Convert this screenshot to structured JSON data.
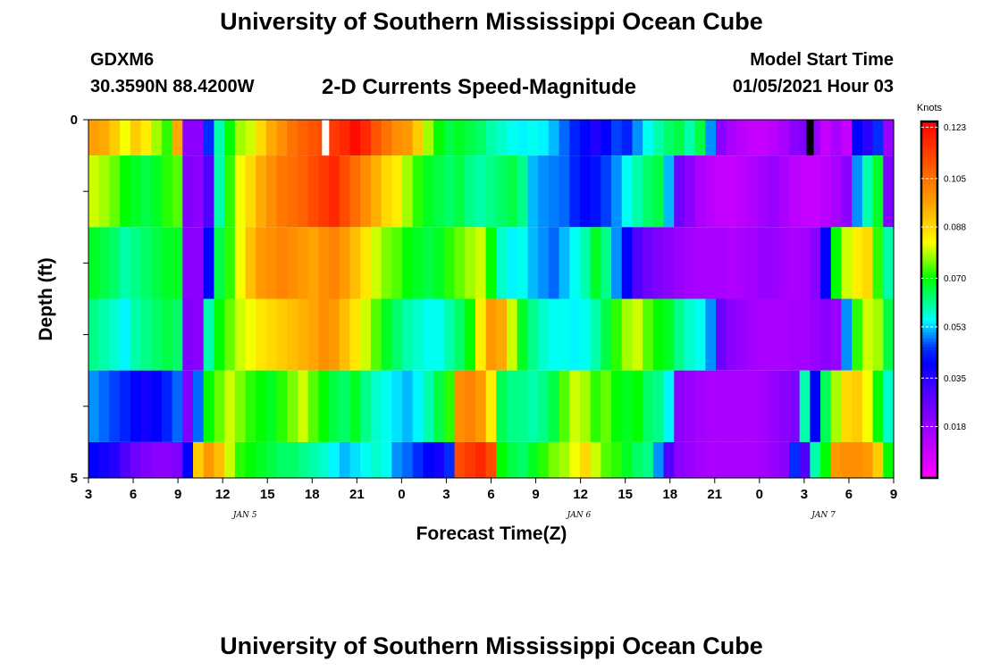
{
  "header": {
    "title": "University of Southern Mississippi Ocean Cube",
    "station": "GDXM6",
    "coordinates": "30.3590N 88.4200W",
    "subtitle": "2-D Currents Speed-Magnitude",
    "model_start_label": "Model Start Time",
    "model_start_value": "01/05/2021 Hour 03"
  },
  "footer": {
    "title": "University of Southern Mississippi Ocean Cube"
  },
  "chart_data": {
    "type": "heatmap",
    "title": "2-D Currents Speed-Magnitude",
    "xlabel": "Forecast Time(Z)",
    "ylabel": "Depth (ft)",
    "x_start_hour": 3,
    "x_end_hour": 57,
    "x_ticks": [
      {
        "hour": 3,
        "label": "3"
      },
      {
        "hour": 6,
        "label": "6"
      },
      {
        "hour": 9,
        "label": "9"
      },
      {
        "hour": 12,
        "label": "12"
      },
      {
        "hour": 15,
        "label": "15"
      },
      {
        "hour": 18,
        "label": "18"
      },
      {
        "hour": 21,
        "label": "21"
      },
      {
        "hour": 24,
        "label": "0"
      },
      {
        "hour": 27,
        "label": "3"
      },
      {
        "hour": 30,
        "label": "6"
      },
      {
        "hour": 33,
        "label": "9"
      },
      {
        "hour": 36,
        "label": "12"
      },
      {
        "hour": 39,
        "label": "15"
      },
      {
        "hour": 42,
        "label": "18"
      },
      {
        "hour": 45,
        "label": "21"
      },
      {
        "hour": 48,
        "label": "0"
      },
      {
        "hour": 51,
        "label": "3"
      },
      {
        "hour": 54,
        "label": "6"
      },
      {
        "hour": 57,
        "label": "9"
      }
    ],
    "date_labels": [
      {
        "hour": 13.5,
        "label": "JAN 5"
      },
      {
        "hour": 35.9,
        "label": "JAN 6"
      },
      {
        "hour": 52.3,
        "label": "JAN 7"
      }
    ],
    "ylim": [
      0,
      5
    ],
    "y_ticks": [
      {
        "depth": 0,
        "label": "0"
      },
      {
        "depth": 1,
        "label": ""
      },
      {
        "depth": 2,
        "label": ""
      },
      {
        "depth": 3,
        "label": ""
      },
      {
        "depth": 4,
        "label": ""
      },
      {
        "depth": 5,
        "label": "5"
      }
    ],
    "depth_rows": [
      {
        "top": 0,
        "bottom": 0.5
      },
      {
        "top": 0.5,
        "bottom": 1.5
      },
      {
        "top": 1.5,
        "bottom": 2.5
      },
      {
        "top": 2.5,
        "bottom": 3.5
      },
      {
        "top": 3.5,
        "bottom": 4.5
      },
      {
        "top": 4.5,
        "bottom": 5
      }
    ],
    "speed_knots": [
      [
        0.097,
        0.095,
        0.09,
        0.082,
        0.09,
        0.085,
        0.078,
        0.072,
        0.095,
        0.02,
        0.02,
        0.045,
        0.06,
        0.07,
        0.078,
        0.08,
        0.088,
        0.095,
        0.1,
        0.105,
        0.108,
        0.11,
        0.112,
        0.115,
        0.118,
        0.123,
        0.118,
        0.11,
        0.105,
        0.1,
        0.098,
        0.09,
        0.078,
        0.07,
        0.066,
        0.068,
        0.066,
        0.064,
        0.06,
        0.058,
        0.056,
        0.055,
        0.056,
        0.055,
        0.052,
        0.048,
        0.044,
        0.04,
        0.036,
        0.04,
        0.046,
        0.044,
        0.05,
        0.056,
        0.06,
        0.064,
        0.066,
        0.06,
        0.066,
        0.05,
        0.02,
        0.015,
        0.012,
        0.01,
        0.01,
        0.012,
        0.015,
        0.02,
        0.022,
        0.018,
        0.01,
        0.015,
        0.01,
        0.04,
        0.035,
        0.045,
        0.018
      ],
      [
        0.08,
        0.078,
        0.075,
        0.07,
        0.068,
        0.066,
        0.068,
        0.072,
        0.074,
        0.022,
        0.02,
        0.03,
        0.06,
        0.072,
        0.082,
        0.088,
        0.095,
        0.1,
        0.104,
        0.106,
        0.108,
        0.112,
        0.115,
        0.118,
        0.112,
        0.106,
        0.1,
        0.094,
        0.088,
        0.085,
        0.078,
        0.072,
        0.068,
        0.066,
        0.064,
        0.066,
        0.062,
        0.06,
        0.062,
        0.064,
        0.066,
        0.062,
        0.052,
        0.05,
        0.049,
        0.048,
        0.044,
        0.04,
        0.042,
        0.046,
        0.05,
        0.056,
        0.06,
        0.064,
        0.066,
        0.052,
        0.025,
        0.02,
        0.015,
        0.012,
        0.01,
        0.01,
        0.012,
        0.014,
        0.016,
        0.018,
        0.015,
        0.012,
        0.01,
        0.01,
        0.012,
        0.015,
        0.02,
        0.05,
        0.06,
        0.068,
        0.022
      ],
      [
        0.068,
        0.066,
        0.064,
        0.06,
        0.062,
        0.064,
        0.066,
        0.068,
        0.068,
        0.02,
        0.02,
        0.04,
        0.066,
        0.072,
        0.082,
        0.092,
        0.098,
        0.1,
        0.102,
        0.1,
        0.098,
        0.096,
        0.1,
        0.102,
        0.098,
        0.092,
        0.086,
        0.08,
        0.076,
        0.074,
        0.07,
        0.068,
        0.066,
        0.068,
        0.072,
        0.075,
        0.078,
        0.08,
        0.07,
        0.058,
        0.055,
        0.056,
        0.052,
        0.05,
        0.048,
        0.052,
        0.056,
        0.06,
        0.068,
        0.062,
        0.05,
        0.04,
        0.03,
        0.025,
        0.022,
        0.02,
        0.018,
        0.016,
        0.015,
        0.015,
        0.015,
        0.014,
        0.015,
        0.016,
        0.018,
        0.018,
        0.016,
        0.015,
        0.016,
        0.02,
        0.04,
        0.07,
        0.08,
        0.085,
        0.088,
        0.072,
        0.06
      ],
      [
        0.062,
        0.06,
        0.058,
        0.055,
        0.06,
        0.062,
        0.064,
        0.066,
        0.064,
        0.022,
        0.02,
        0.06,
        0.07,
        0.075,
        0.08,
        0.082,
        0.086,
        0.088,
        0.09,
        0.092,
        0.094,
        0.096,
        0.1,
        0.098,
        0.092,
        0.086,
        0.08,
        0.074,
        0.068,
        0.064,
        0.06,
        0.058,
        0.056,
        0.056,
        0.06,
        0.064,
        0.07,
        0.085,
        0.098,
        0.095,
        0.08,
        0.068,
        0.062,
        0.058,
        0.056,
        0.056,
        0.055,
        0.056,
        0.06,
        0.066,
        0.072,
        0.078,
        0.08,
        0.074,
        0.07,
        0.068,
        0.062,
        0.058,
        0.056,
        0.05,
        0.025,
        0.02,
        0.018,
        0.016,
        0.015,
        0.015,
        0.015,
        0.016,
        0.016,
        0.018,
        0.02,
        0.018,
        0.05,
        0.072,
        0.08,
        0.078,
        0.066
      ],
      [
        0.05,
        0.048,
        0.046,
        0.044,
        0.04,
        0.038,
        0.04,
        0.044,
        0.048,
        0.022,
        0.048,
        0.07,
        0.075,
        0.08,
        0.076,
        0.072,
        0.07,
        0.068,
        0.072,
        0.076,
        0.08,
        0.074,
        0.07,
        0.066,
        0.064,
        0.068,
        0.062,
        0.058,
        0.056,
        0.054,
        0.052,
        0.055,
        0.06,
        0.066,
        0.072,
        0.1,
        0.102,
        0.098,
        0.085,
        0.065,
        0.062,
        0.062,
        0.06,
        0.062,
        0.066,
        0.074,
        0.08,
        0.078,
        0.072,
        0.075,
        0.07,
        0.068,
        0.07,
        0.064,
        0.062,
        0.055,
        0.02,
        0.018,
        0.016,
        0.015,
        0.015,
        0.015,
        0.015,
        0.015,
        0.016,
        0.018,
        0.02,
        0.022,
        0.06,
        0.04,
        0.065,
        0.078,
        0.088,
        0.09,
        0.082,
        0.07,
        0.058
      ],
      [
        0.04,
        0.038,
        0.036,
        0.03,
        0.025,
        0.022,
        0.02,
        0.02,
        0.022,
        0.04,
        0.09,
        0.098,
        0.092,
        0.08,
        0.072,
        0.07,
        0.068,
        0.066,
        0.064,
        0.064,
        0.062,
        0.06,
        0.058,
        0.055,
        0.052,
        0.054,
        0.056,
        0.058,
        0.056,
        0.05,
        0.048,
        0.045,
        0.04,
        0.038,
        0.045,
        0.112,
        0.115,
        0.118,
        0.112,
        0.07,
        0.066,
        0.064,
        0.068,
        0.072,
        0.076,
        0.078,
        0.082,
        0.088,
        0.08,
        0.074,
        0.072,
        0.068,
        0.064,
        0.062,
        0.05,
        0.03,
        0.02,
        0.018,
        0.016,
        0.015,
        0.015,
        0.015,
        0.015,
        0.015,
        0.016,
        0.018,
        0.02,
        0.045,
        0.03,
        0.06,
        0.07,
        0.098,
        0.1,
        0.1,
        0.098,
        0.09,
        0.07
      ]
    ],
    "missing_cells": [
      {
        "hour": 18.9,
        "row": 0,
        "marker": "white"
      },
      {
        "hour": 51.4,
        "row": 0,
        "marker": "black"
      }
    ],
    "colorbar": {
      "title": "Knots",
      "min": 0.0,
      "max": 0.125,
      "ticks": [
        "0.123",
        "0.105",
        "0.088",
        "0.070",
        "0.053",
        "0.035",
        "0.018"
      ],
      "tick_values": [
        0.123,
        0.105,
        0.088,
        0.07,
        0.053,
        0.035,
        0.018
      ]
    }
  }
}
